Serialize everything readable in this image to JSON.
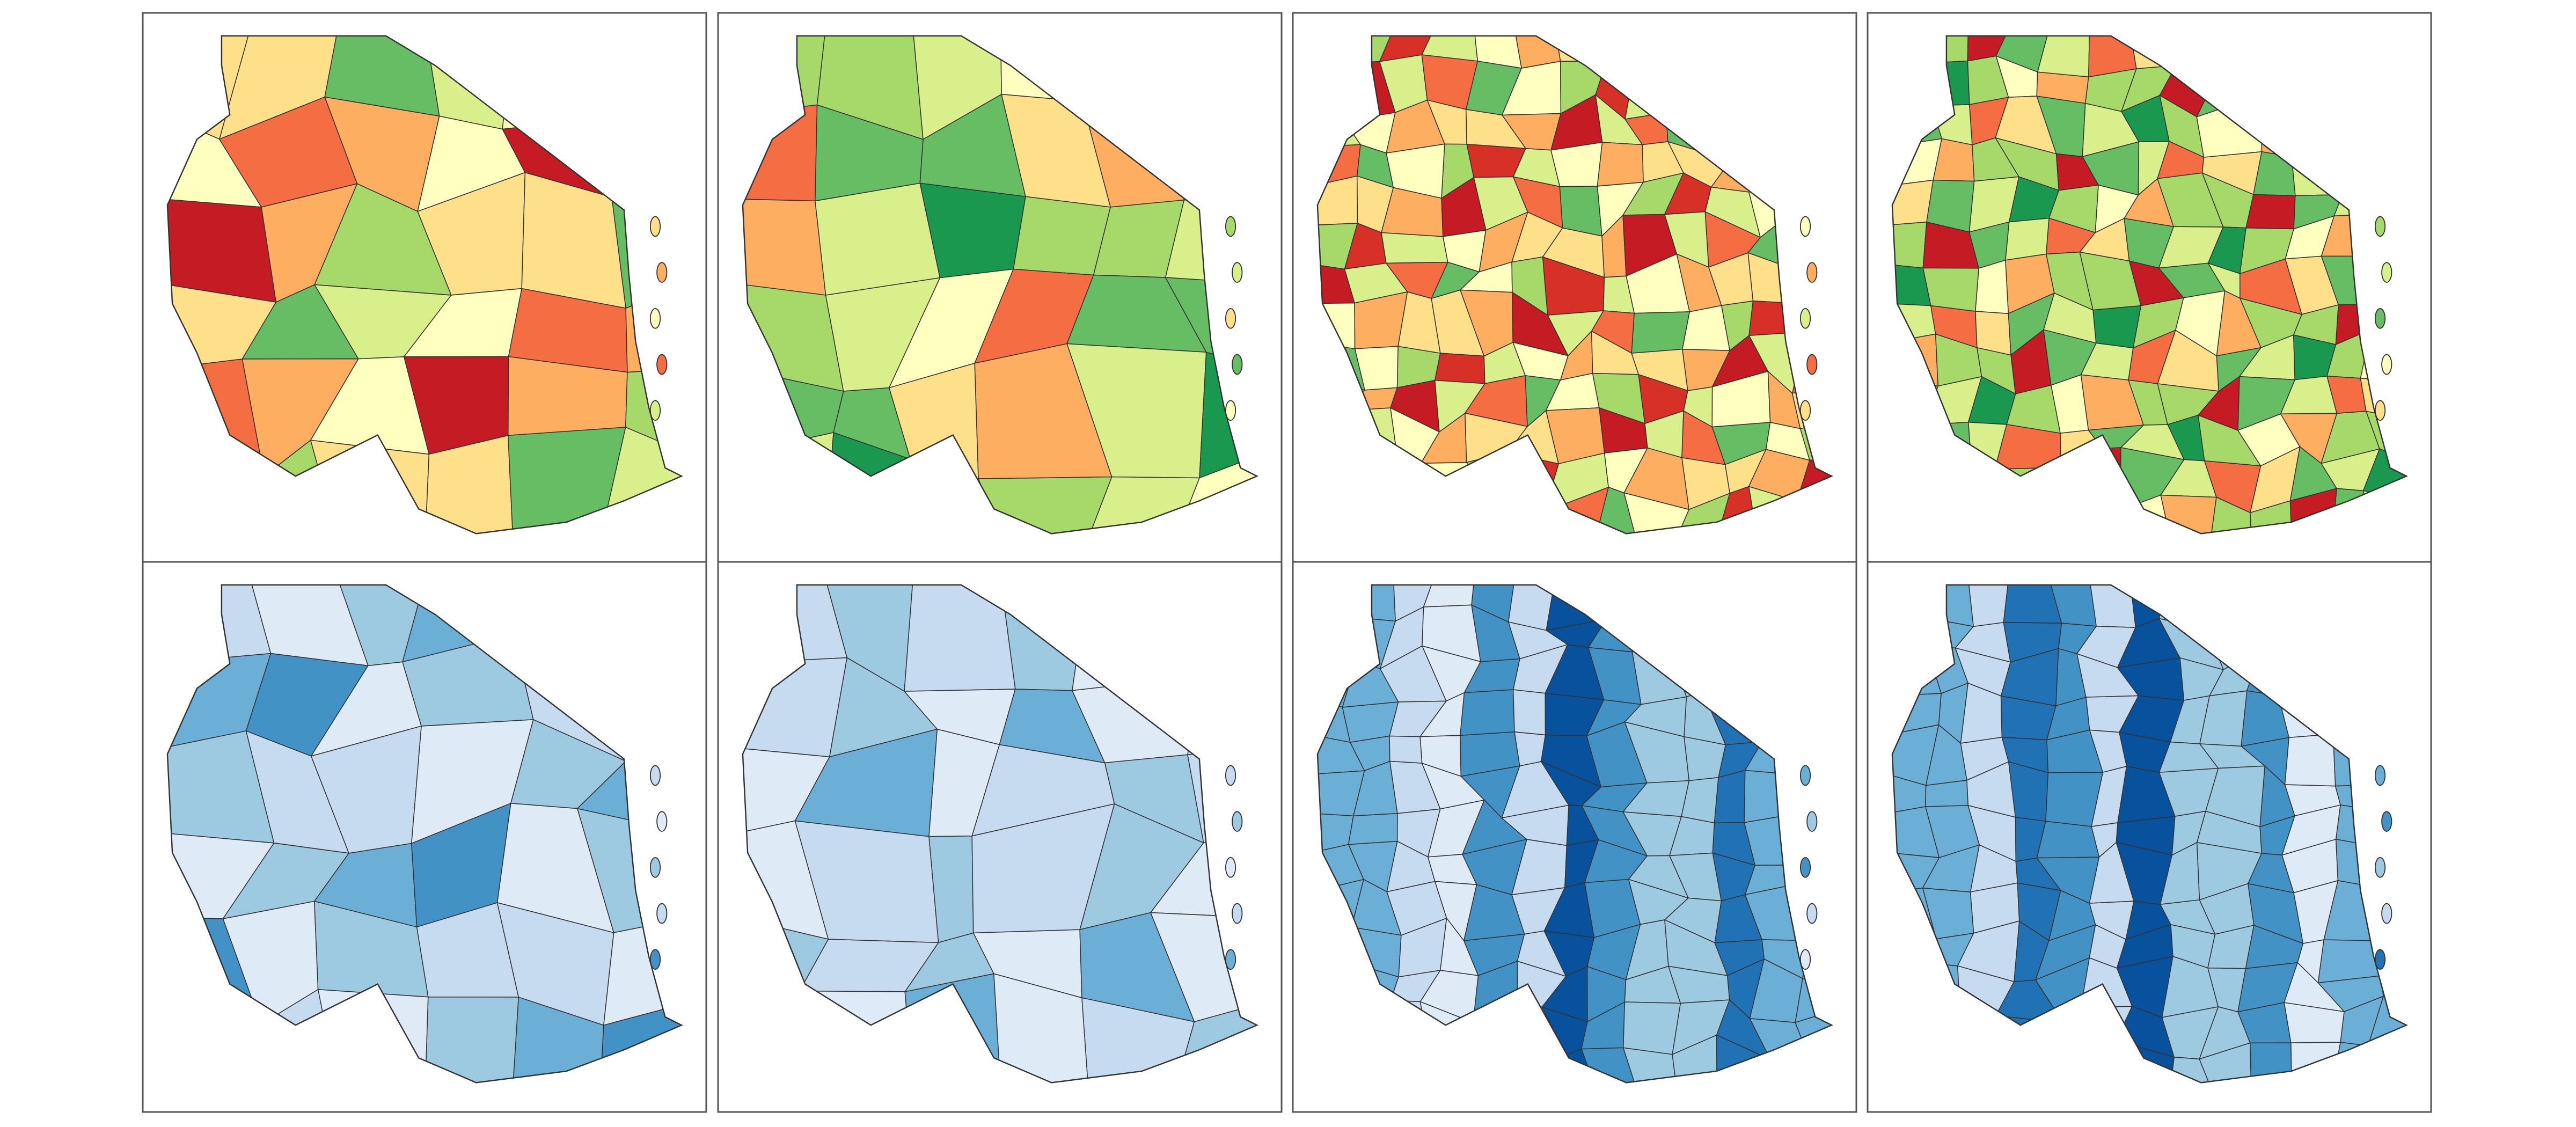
{
  "panels": [
    {
      "colors": [
        "#fee08b",
        "#fdae61",
        "#ffffbf",
        "#f46d43",
        "#d9ef8b",
        "#fee08b",
        "#a6d96a",
        "#c51b24",
        "#fdae61",
        "#ffffbf",
        "#66bd63"
      ]
    },
    {
      "colors": [
        "#a6d96a",
        "#d9ef8b",
        "#fee08b",
        "#66bd63",
        "#ffffbf",
        "#a6d96a",
        "#1a9850",
        "#fdae61",
        "#66bd63",
        "#f46d43",
        "#d9ef8b"
      ]
    },
    {
      "colors": [
        "#ffffbf",
        "#fdae61",
        "#d9ef8b",
        "#f46d43",
        "#fee08b",
        "#a6d96a",
        "#c51b24",
        "#ffffbf",
        "#66bd63",
        "#fee08b",
        "#d73027",
        "#d9ef8b",
        "#fdae61"
      ]
    },
    {
      "colors": [
        "#a6d96a",
        "#d9ef8b",
        "#66bd63",
        "#ffffbf",
        "#fee08b",
        "#a6d96a",
        "#1a9850",
        "#d9ef8b",
        "#fdae61",
        "#66bd63",
        "#c51b24",
        "#a6d96a",
        "#f46d43"
      ]
    },
    {
      "colors": [
        "#c6dbef",
        "#deebf7",
        "#9ecae1",
        "#c6dbef",
        "#4292c6",
        "#deebf7",
        "#9ecae1",
        "#6baed6"
      ]
    },
    {
      "colors": [
        "#c6dbef",
        "#9ecae1",
        "#deebf7",
        "#c6dbef",
        "#6baed6",
        "#9ecae1",
        "#deebf7"
      ]
    },
    {
      "colors": [
        "#6baed6",
        "#9ecae1",
        "#4292c6",
        "#c6dbef",
        "#deebf7",
        "#6baed6",
        "#2171b5",
        "#9ecae1",
        "#08519c",
        "#4292c6",
        "#c6dbef"
      ]
    },
    {
      "colors": [
        "#6baed6",
        "#4292c6",
        "#9ecae1",
        "#c6dbef",
        "#2171b5",
        "#6baed6",
        "#deebf7",
        "#9ecae1",
        "#08519c",
        "#4292c6",
        "#c6dbef"
      ]
    }
  ]
}
